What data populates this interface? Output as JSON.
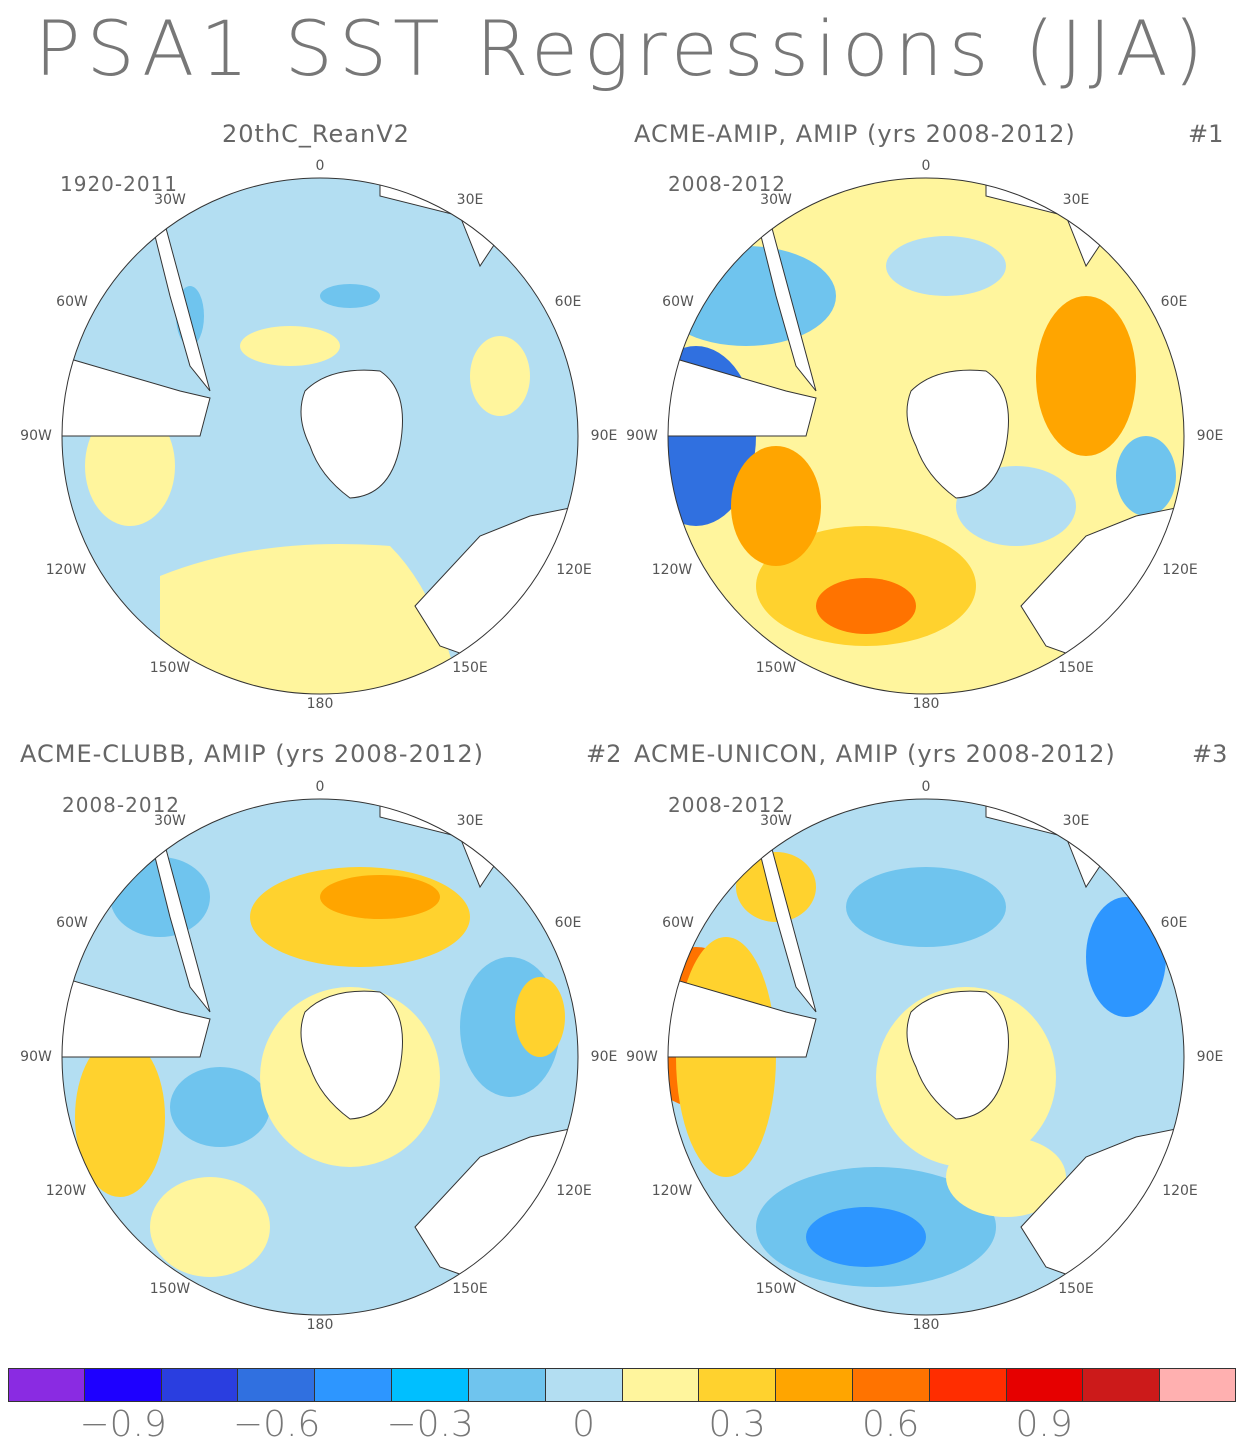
{
  "title": "PSA1 SST Regressions (JJA)",
  "panels": [
    {
      "title": "20thC_ReanV2",
      "number": "",
      "period": "1920-2011"
    },
    {
      "title": "ACME-AMIP, AMIP (yrs 2008-2012)",
      "number": "#1",
      "period": "2008-2012"
    },
    {
      "title": "ACME-CLUBB, AMIP (yrs 2008-2012)",
      "number": "#2",
      "period": "2008-2012"
    },
    {
      "title": "ACME-UNICON, AMIP (yrs 2008-2012)",
      "number": "#3",
      "period": "2008-2012"
    }
  ],
  "lon_labels": {
    "top": "0",
    "tr": "30E",
    "tl": "30W",
    "r1": "60E",
    "l1": "60W",
    "r2": "90E",
    "l2": "90W",
    "r3": "120E",
    "l3": "120W",
    "r4": "150E",
    "l4": "150W",
    "bottom": "180"
  },
  "colorbar": {
    "colors": [
      "#8a2be2",
      "#1e00ff",
      "#2a3ee0",
      "#3070e0",
      "#2d96ff",
      "#00bfff",
      "#6fc4ee",
      "#b3def2",
      "#fff59d",
      "#ffd22e",
      "#ffa500",
      "#ff7300",
      "#ff2d00",
      "#e60000",
      "#cc1a1a",
      "#ffb0b0"
    ],
    "tick_labels": [
      "−0.9",
      "−0.6",
      "−0.3",
      "0",
      "0.3",
      "0.6",
      "0.9"
    ]
  },
  "colors": {
    "land": "#ffffff",
    "coast": "#333333"
  }
}
